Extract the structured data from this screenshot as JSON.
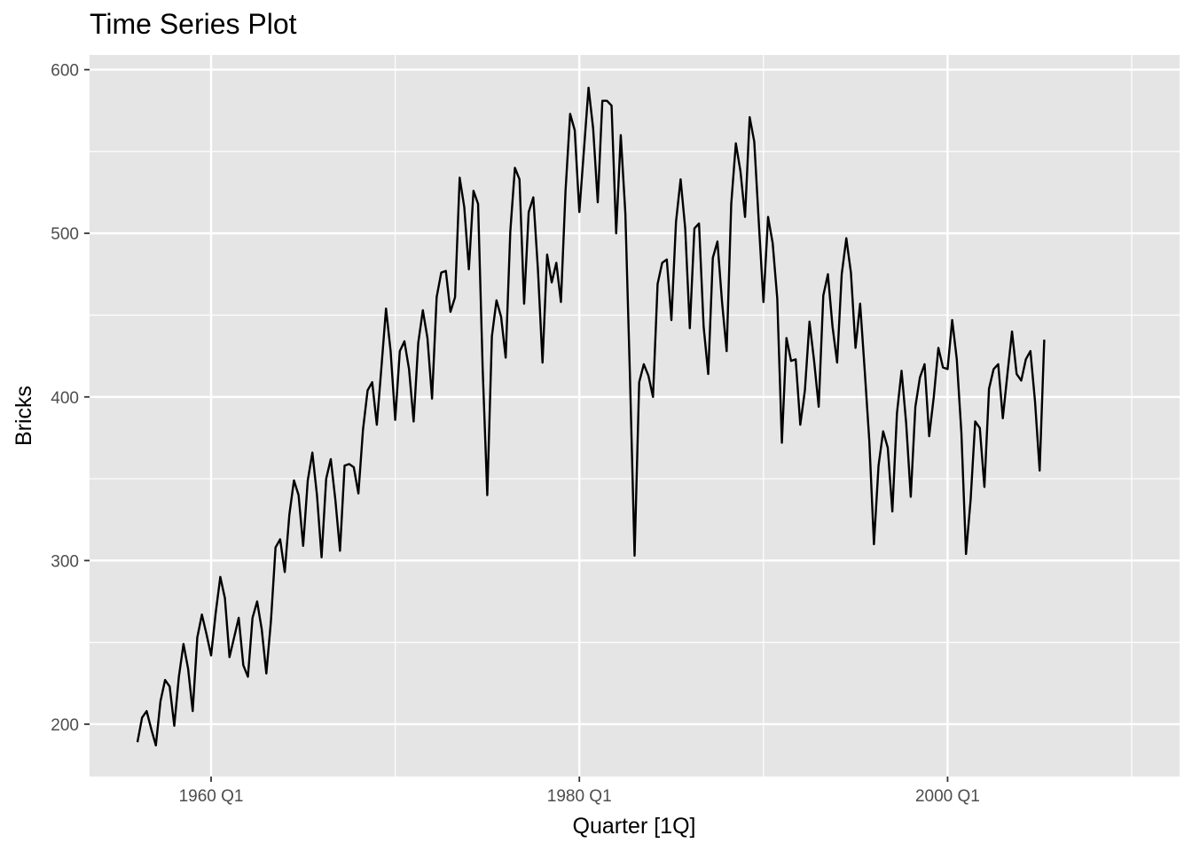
{
  "chart_data": {
    "type": "line",
    "title": "Time Series Plot",
    "xlabel": "Quarter [1Q]",
    "ylabel": "Bricks",
    "x_unit": "year (quarterly, decimal)",
    "xlim": [
      1953.4,
      2012.6
    ],
    "ylim": [
      168,
      609
    ],
    "x_ticks": [
      {
        "value": 1960,
        "label": "1960 Q1"
      },
      {
        "value": 1980,
        "label": "1980 Q1"
      },
      {
        "value": 2000,
        "label": "2000 Q1"
      }
    ],
    "x_minor_ticks": [
      1970,
      1990,
      2010
    ],
    "y_ticks": [
      200,
      300,
      400,
      500,
      600
    ],
    "y_minor_ticks": [
      250,
      350,
      450,
      550
    ],
    "grid": true,
    "legend": "none",
    "colors": {
      "line": "#000000",
      "panel": "#e5e5e5",
      "grid": "#ffffff"
    },
    "series": [
      {
        "x_start": 1956.0,
        "x_step": 0.25,
        "values": [
          189,
          204,
          208,
          197,
          187,
          214,
          227,
          223,
          199,
          229,
          249,
          234,
          208,
          253,
          267,
          255,
          242,
          268,
          290,
          277,
          241,
          253,
          265,
          236,
          229,
          265,
          275,
          258,
          231,
          263,
          308,
          313,
          293,
          328,
          349,
          340,
          309,
          349,
          366,
          340,
          302,
          350,
          362,
          337,
          306,
          358,
          359,
          357,
          341,
          380,
          404,
          409,
          383,
          418,
          454,
          428,
          386,
          428,
          434,
          417,
          385,
          433,
          453,
          436,
          399,
          461,
          476,
          477,
          452,
          461,
          534,
          516,
          478,
          526,
          518,
          417,
          340,
          437,
          459,
          449,
          424,
          501,
          540,
          533,
          457,
          513,
          522,
          478,
          421,
          487,
          470,
          482,
          458,
          526,
          573,
          563,
          513,
          551,
          589,
          564,
          519,
          581,
          581,
          578,
          500,
          560,
          512,
          412,
          303,
          409,
          420,
          413,
          400,
          469,
          482,
          484,
          447,
          507,
          533,
          503,
          442,
          503,
          506,
          443,
          414,
          485,
          495,
          458,
          428,
          518,
          555,
          538,
          510,
          571,
          556,
          506,
          458,
          510,
          494,
          460,
          372,
          436,
          422,
          423,
          383,
          404,
          446,
          422,
          394,
          462,
          475,
          443,
          421,
          475,
          497,
          476,
          430,
          457,
          416,
          373,
          310,
          358,
          379,
          369,
          330,
          390,
          416,
          384,
          339,
          394,
          412,
          420,
          376,
          400,
          430,
          418,
          417,
          447,
          423,
          378,
          304,
          337,
          385,
          381,
          345,
          405,
          417,
          420,
          387,
          414,
          440,
          414,
          410,
          423,
          428,
          397,
          355,
          435
        ]
      }
    ]
  }
}
